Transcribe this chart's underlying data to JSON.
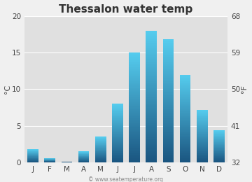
{
  "title": "Thessalon water temp",
  "months": [
    "J",
    "F",
    "M",
    "A",
    "M",
    "J",
    "J",
    "A",
    "S",
    "O",
    "N",
    "D"
  ],
  "values_c": [
    1.8,
    0.6,
    0.1,
    1.5,
    3.5,
    8.0,
    15.0,
    18.0,
    16.8,
    12.0,
    7.2,
    4.4
  ],
  "ylim_c": [
    0,
    20
  ],
  "yticks_c": [
    0,
    5,
    10,
    15,
    20
  ],
  "ylim_f": [
    32,
    68
  ],
  "yticks_f": [
    32,
    41,
    50,
    59,
    68
  ],
  "ylabel_left": "°C",
  "ylabel_right": "°F",
  "fig_bg_color": "#f0f0f0",
  "plot_bg_color": "#e0e0e0",
  "bar_color_top": "#55ccee",
  "bar_color_bottom": "#1a5580",
  "grid_color": "#ffffff",
  "title_fontsize": 11,
  "tick_fontsize": 7.5,
  "label_fontsize": 8,
  "watermark": "© www.seatemperature.org",
  "watermark_fontsize": 5.5
}
